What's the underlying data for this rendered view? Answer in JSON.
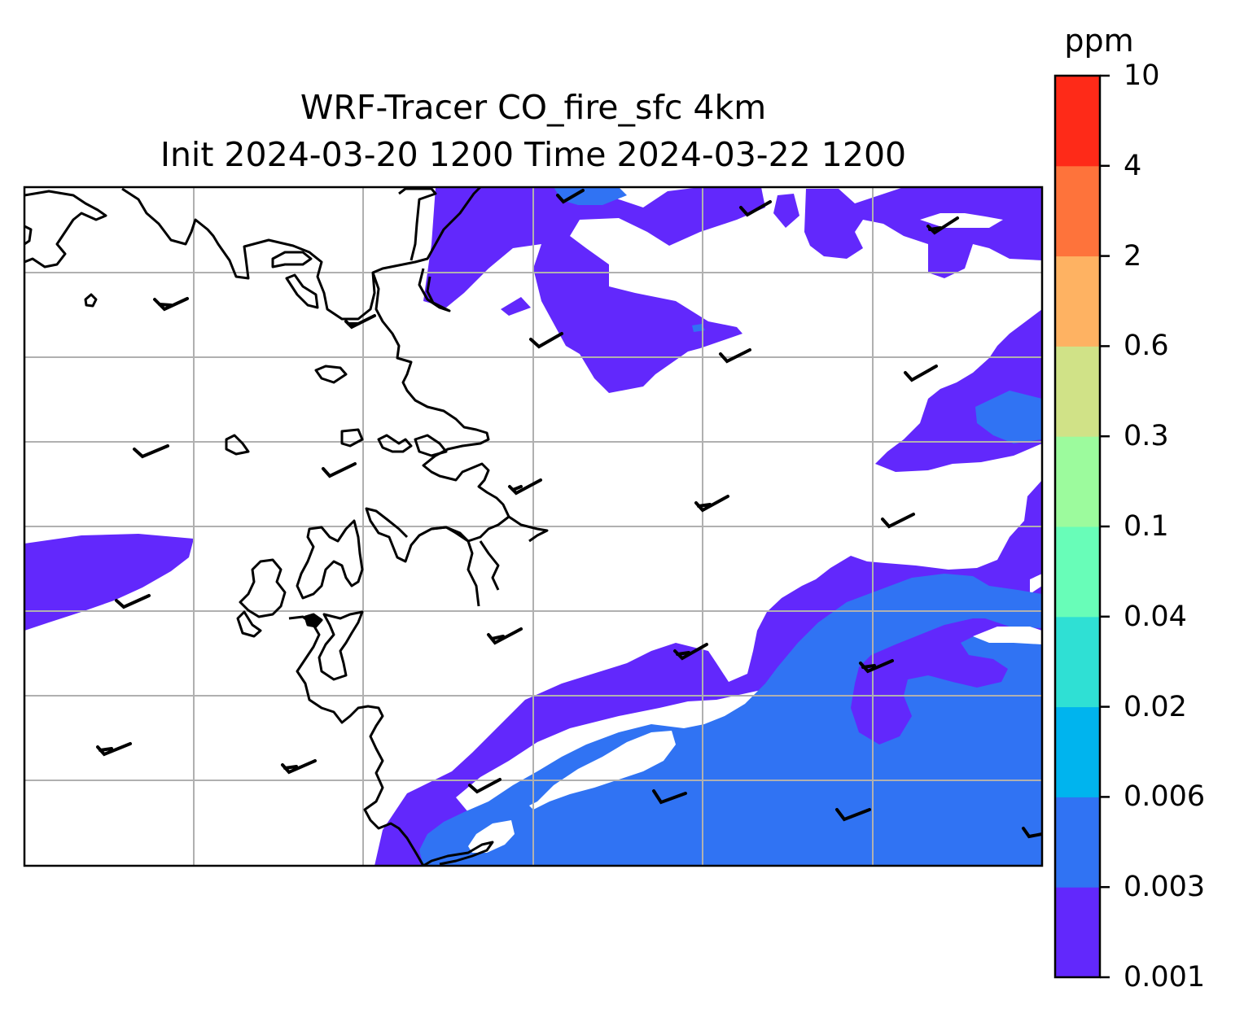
{
  "title": {
    "line1": "WRF-Tracer CO_fire_sfc 4km",
    "line2": "Init 2024-03-20 1200 Time 2024-03-22 1200"
  },
  "colorbar": {
    "units": "ppm",
    "levels": [
      "0.001",
      "0.003",
      "0.006",
      "0.02",
      "0.04",
      "0.1",
      "0.3",
      "0.6",
      "2",
      "4",
      "10"
    ],
    "colors": [
      "#6228fc",
      "#3073f3",
      "#00b4ee",
      "#2fe0d4",
      "#68fdb8",
      "#9cfb9d",
      "#d0e287",
      "#feb262",
      "#fe733b",
      "#fe2a18"
    ]
  },
  "map": {
    "fill_colors": {
      "level1": "#6228fc",
      "level2": "#3073f3"
    },
    "gridline_color": "#b0b0b0",
    "coastline_color": "#000000",
    "barb_color": "#000000",
    "gridlines": true
  }
}
